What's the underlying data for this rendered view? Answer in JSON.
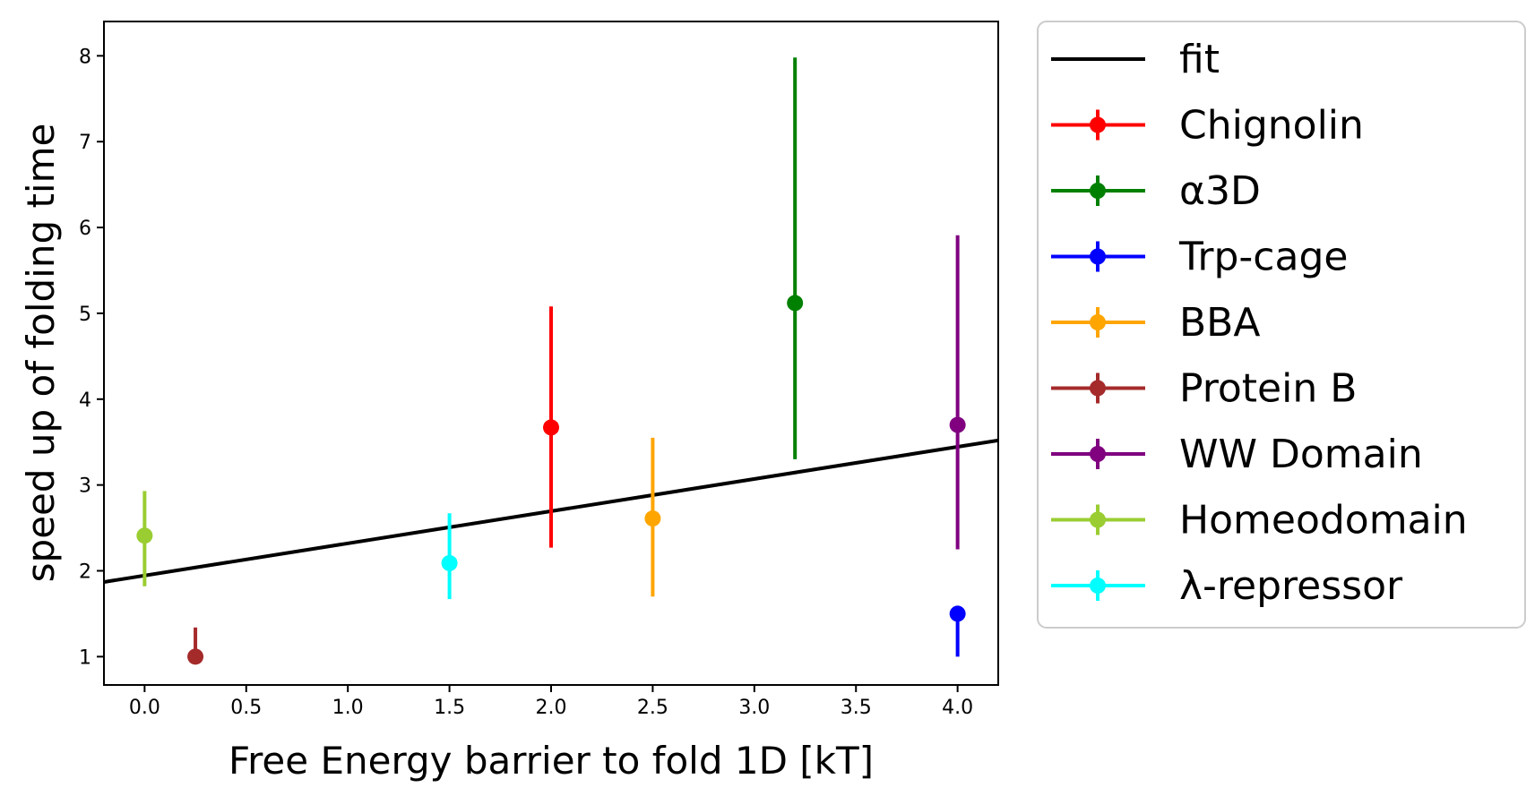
{
  "chart_data": {
    "type": "scatter",
    "xlabel": "Free Energy barrier to fold 1D [kT]",
    "ylabel": "speed up of folding time",
    "xlim": [
      -0.2,
      4.2
    ],
    "ylim": [
      0.67,
      8.4
    ],
    "xticks": [
      0.0,
      0.5,
      1.0,
      1.5,
      2.0,
      2.5,
      3.0,
      3.5,
      4.0
    ],
    "xtick_labels": [
      "0.0",
      "0.5",
      "1.0",
      "1.5",
      "2.0",
      "2.5",
      "3.0",
      "3.5",
      "4.0"
    ],
    "yticks": [
      1,
      2,
      3,
      4,
      5,
      6,
      7,
      8
    ],
    "ytick_labels": [
      "1",
      "2",
      "3",
      "4",
      "5",
      "6",
      "7",
      "8"
    ],
    "grid": false,
    "legend_placement": "outside-right",
    "fit": {
      "name": "fit",
      "color": "#000000",
      "x": [
        -0.2,
        4.2
      ],
      "y": [
        1.87,
        3.52
      ]
    },
    "series": [
      {
        "name": "Chignolin",
        "color": "#ff0000",
        "x": 2.0,
        "y": 3.67,
        "yerr_low": 2.27,
        "yerr_high": 5.08
      },
      {
        "name": "α3D",
        "color": "#008000",
        "x": 3.2,
        "y": 5.12,
        "yerr_low": 3.3,
        "yerr_high": 7.98
      },
      {
        "name": "Trp-cage",
        "color": "#0000ff",
        "x": 4.0,
        "y": 1.5,
        "yerr_low": 1.0,
        "yerr_high": 1.5
      },
      {
        "name": "BBA",
        "color": "#ffa500",
        "x": 2.5,
        "y": 2.61,
        "yerr_low": 1.7,
        "yerr_high": 3.55
      },
      {
        "name": "Protein B",
        "color": "#a52a2a",
        "x": 0.25,
        "y": 1.0,
        "yerr_low": 1.0,
        "yerr_high": 1.34
      },
      {
        "name": "WW Domain",
        "color": "#800080",
        "x": 4.0,
        "y": 3.7,
        "yerr_low": 2.25,
        "yerr_high": 5.91
      },
      {
        "name": "Homeodomain",
        "color": "#9acd32",
        "x": 0.0,
        "y": 2.41,
        "yerr_low": 1.82,
        "yerr_high": 2.93
      },
      {
        "name": "λ-repressor",
        "color": "#00ffff",
        "x": 1.5,
        "y": 2.09,
        "yerr_low": 1.67,
        "yerr_high": 2.67
      }
    ]
  }
}
